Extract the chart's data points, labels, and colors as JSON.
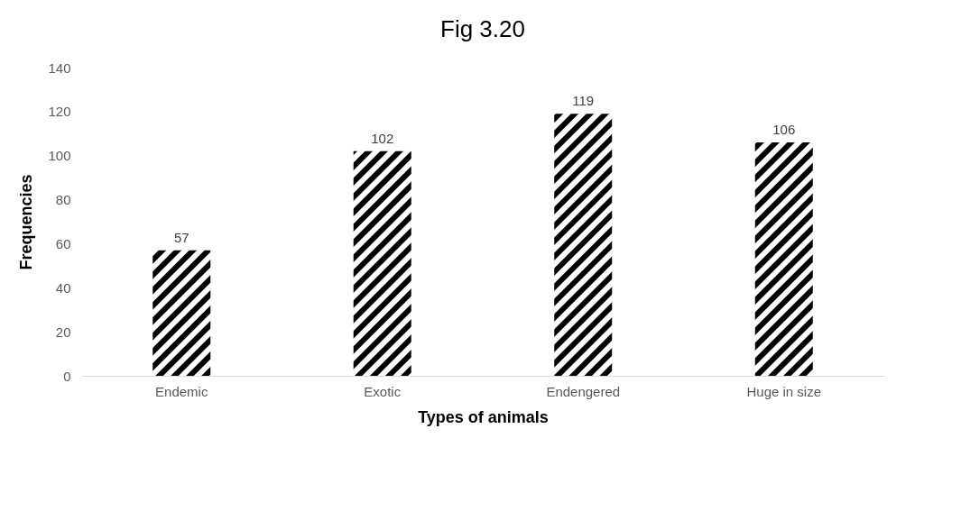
{
  "chart_data": {
    "type": "bar",
    "title": "Fig 3.20",
    "xlabel": "Types of animals",
    "ylabel": "Frequencies",
    "categories": [
      "Endemic",
      "Exotic",
      "Endengered",
      "Huge in size"
    ],
    "values": [
      57,
      102,
      119,
      106
    ],
    "color": "#000000",
    "ylim": [
      0,
      140
    ],
    "yticks": [
      0,
      20,
      40,
      60,
      80,
      100,
      120,
      140
    ],
    "grid": false,
    "data_labels": true
  }
}
